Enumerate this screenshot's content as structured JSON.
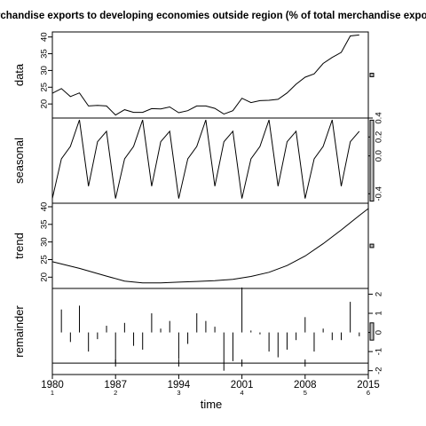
{
  "chart_data": {
    "type": "line",
    "title": "Merchandise exports to developing economies outside region (% of total merchandise exports)",
    "xlabel": "time",
    "x_ticks": [
      "1980",
      "1987",
      "1994",
      "2001",
      "2008",
      "2015"
    ],
    "x_sub_ticks": [
      "1",
      "2",
      "3",
      "4",
      "5",
      "6"
    ],
    "xlim": [
      1980,
      2015
    ],
    "frequency": 7,
    "panels": [
      {
        "name": "data",
        "ylim": [
          15.8,
          41.5
        ],
        "y_ticks": [
          "20",
          "25",
          "30",
          "35",
          "40"
        ],
        "series": [
          {
            "x": 1980,
            "y": 23.2
          },
          {
            "x": 1981,
            "y": 24.6
          },
          {
            "x": 1982,
            "y": 22.2
          },
          {
            "x": 1983,
            "y": 23.3
          },
          {
            "x": 1984,
            "y": 19.4
          },
          {
            "x": 1985,
            "y": 19.6
          },
          {
            "x": 1986,
            "y": 19.4
          },
          {
            "x": 1987,
            "y": 16.7
          },
          {
            "x": 1988,
            "y": 18.3
          },
          {
            "x": 1989,
            "y": 17.5
          },
          {
            "x": 1990,
            "y": 17.5
          },
          {
            "x": 1991,
            "y": 18.6
          },
          {
            "x": 1992,
            "y": 18.5
          },
          {
            "x": 1993,
            "y": 19.1
          },
          {
            "x": 1994,
            "y": 17.4
          },
          {
            "x": 1995,
            "y": 18.0
          },
          {
            "x": 1996,
            "y": 19.4
          },
          {
            "x": 1997,
            "y": 19.4
          },
          {
            "x": 1998,
            "y": 18.7
          },
          {
            "x": 1999,
            "y": 17.0
          },
          {
            "x": 2000,
            "y": 18.0
          },
          {
            "x": 2001,
            "y": 21.7
          },
          {
            "x": 2002,
            "y": 20.4
          },
          {
            "x": 2003,
            "y": 21.0
          },
          {
            "x": 2004,
            "y": 21.1
          },
          {
            "x": 2005,
            "y": 21.4
          },
          {
            "x": 2006,
            "y": 23.3
          },
          {
            "x": 2007,
            "y": 25.9
          },
          {
            "x": 2008,
            "y": 28.0
          },
          {
            "x": 2009,
            "y": 29.0
          },
          {
            "x": 2010,
            "y": 32.1
          },
          {
            "x": 2011,
            "y": 33.9
          },
          {
            "x": 2012,
            "y": 35.4
          },
          {
            "x": 2013,
            "y": 40.3
          },
          {
            "x": 2014,
            "y": 40.6
          }
        ]
      },
      {
        "name": "seasonal",
        "ylim": [
          -0.5,
          0.4
        ],
        "y_ticks": [
          "-0.4",
          "0.0",
          "0.2",
          "0.4"
        ],
        "cycle": [
          -0.45,
          -0.03,
          0.1,
          0.38,
          -0.32,
          0.15,
          0.26
        ]
      },
      {
        "name": "trend",
        "ylim": [
          16.8,
          41.0
        ],
        "y_ticks": [
          "20",
          "25",
          "30",
          "35",
          "40"
        ],
        "series": [
          {
            "x": 1980,
            "y": 24.4
          },
          {
            "x": 1983,
            "y": 22.5
          },
          {
            "x": 1986,
            "y": 20.3
          },
          {
            "x": 1988,
            "y": 18.9
          },
          {
            "x": 1990,
            "y": 18.4
          },
          {
            "x": 1992,
            "y": 18.4
          },
          {
            "x": 1994,
            "y": 18.6
          },
          {
            "x": 1996,
            "y": 18.8
          },
          {
            "x": 1998,
            "y": 19.0
          },
          {
            "x": 2000,
            "y": 19.4
          },
          {
            "x": 2002,
            "y": 20.2
          },
          {
            "x": 2004,
            "y": 21.4
          },
          {
            "x": 2006,
            "y": 23.3
          },
          {
            "x": 2008,
            "y": 26.0
          },
          {
            "x": 2010,
            "y": 29.5
          },
          {
            "x": 2012,
            "y": 33.4
          },
          {
            "x": 2014,
            "y": 37.5
          },
          {
            "x": 2015,
            "y": 39.5
          }
        ]
      },
      {
        "name": "remainder",
        "ylim": [
          -2.2,
          2.3
        ],
        "y_ticks": [
          "-2",
          "-1",
          "0",
          "1",
          "2"
        ],
        "series": [
          {
            "x": 1980,
            "y": -0.7
          },
          {
            "x": 1981,
            "y": 1.2
          },
          {
            "x": 1982,
            "y": -0.5
          },
          {
            "x": 1983,
            "y": 1.4
          },
          {
            "x": 1984,
            "y": -1.0
          },
          {
            "x": 1985,
            "y": -0.35
          },
          {
            "x": 1986,
            "y": 0.35
          },
          {
            "x": 1987,
            "y": -1.6
          },
          {
            "x": 1988,
            "y": 0.5
          },
          {
            "x": 1989,
            "y": -0.7
          },
          {
            "x": 1990,
            "y": -0.9
          },
          {
            "x": 1991,
            "y": 1.0
          },
          {
            "x": 1992,
            "y": 0.2
          },
          {
            "x": 1993,
            "y": 0.6
          },
          {
            "x": 1994,
            "y": -1.4
          },
          {
            "x": 1995,
            "y": -0.6
          },
          {
            "x": 1996,
            "y": 1.0
          },
          {
            "x": 1997,
            "y": 0.6
          },
          {
            "x": 1998,
            "y": 0.3
          },
          {
            "x": 1999,
            "y": -2.0
          },
          {
            "x": 2000,
            "y": -1.5
          },
          {
            "x": 2001,
            "y": 2.35
          },
          {
            "x": 2002,
            "y": 0.1
          },
          {
            "x": 2003,
            "y": -0.1
          },
          {
            "x": 2004,
            "y": -1.0
          },
          {
            "x": 2005,
            "y": -1.3
          },
          {
            "x": 2006,
            "y": -0.9
          },
          {
            "x": 2007,
            "y": -0.4
          },
          {
            "x": 2008,
            "y": 0.8
          },
          {
            "x": 2009,
            "y": -1.0
          },
          {
            "x": 2010,
            "y": 0.2
          },
          {
            "x": 2011,
            "y": -0.4
          },
          {
            "x": 2012,
            "y": -0.4
          },
          {
            "x": 2013,
            "y": 1.6
          },
          {
            "x": 2014,
            "y": -0.2
          }
        ]
      }
    ]
  }
}
